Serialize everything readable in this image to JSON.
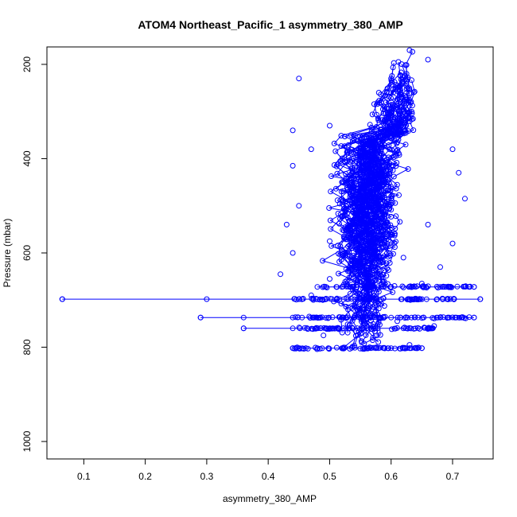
{
  "chart_data": {
    "type": "scatter",
    "title": "ATOM4 Northeast_Pacific_1 asymmetry_380_AMP",
    "xlabel": "asymmetry_380_AMP",
    "ylabel": "Pressure (mbar)",
    "xlim": [
      0.04,
      0.766
    ],
    "ylim": [
      1037,
      163
    ],
    "y_inverted": true,
    "grid": false,
    "legend": "none",
    "marker": "open-circle",
    "connected_lines": true,
    "series_color": "#0000ff",
    "x_ticks": [
      0.1,
      0.2,
      0.3,
      0.4,
      0.5,
      0.6,
      0.7
    ],
    "x_tick_labels": [
      "0.1",
      "0.2",
      "0.3",
      "0.4",
      "0.5",
      "0.6",
      "0.7"
    ],
    "y_ticks": [
      200,
      400,
      600,
      800,
      1000
    ],
    "y_tick_labels": [
      "200",
      "400",
      "600",
      "800",
      "1000"
    ],
    "profile_segments": [
      {
        "y": 698,
        "x": [
          0.065,
          0.3,
          0.45,
          0.55,
          0.65,
          0.745
        ]
      },
      {
        "y": 672,
        "x": [
          0.48,
          0.52,
          0.56,
          0.6,
          0.64,
          0.68,
          0.735
        ]
      },
      {
        "y": 737,
        "x": [
          0.29,
          0.36,
          0.44,
          0.52,
          0.6,
          0.68,
          0.735
        ]
      },
      {
        "y": 760,
        "x": [
          0.36,
          0.44,
          0.5,
          0.56,
          0.62,
          0.665
        ]
      },
      {
        "y": 802,
        "x": [
          0.44,
          0.48,
          0.52,
          0.56,
          0.6,
          0.65
        ]
      }
    ],
    "points": [
      [
        0.065,
        698
      ],
      [
        0.745,
        698
      ],
      [
        0.29,
        737
      ],
      [
        0.735,
        737
      ],
      [
        0.36,
        760
      ],
      [
        0.44,
        802
      ],
      [
        0.65,
        802
      ],
      [
        0.735,
        672
      ],
      [
        0.63,
        170
      ],
      [
        0.6,
        230
      ],
      [
        0.45,
        230
      ],
      [
        0.66,
        190
      ],
      [
        0.58,
        260
      ],
      [
        0.5,
        330
      ],
      [
        0.44,
        340
      ],
      [
        0.62,
        300
      ],
      [
        0.55,
        360
      ],
      [
        0.47,
        380
      ],
      [
        0.7,
        380
      ],
      [
        0.44,
        415
      ],
      [
        0.71,
        430
      ],
      [
        0.52,
        450
      ],
      [
        0.6,
        480
      ],
      [
        0.72,
        485
      ],
      [
        0.45,
        500
      ],
      [
        0.56,
        520
      ],
      [
        0.66,
        540
      ],
      [
        0.43,
        540
      ],
      [
        0.5,
        575
      ],
      [
        0.7,
        580
      ],
      [
        0.44,
        600
      ],
      [
        0.62,
        610
      ],
      [
        0.55,
        625
      ],
      [
        0.68,
        630
      ],
      [
        0.42,
        645
      ],
      [
        0.5,
        655
      ],
      [
        0.58,
        660
      ],
      [
        0.65,
        665
      ],
      [
        0.47,
        690
      ],
      [
        0.53,
        720
      ],
      [
        0.61,
        745
      ],
      [
        0.67,
        755
      ],
      [
        0.49,
        775
      ],
      [
        0.57,
        785
      ],
      [
        0.63,
        795
      ]
    ]
  }
}
